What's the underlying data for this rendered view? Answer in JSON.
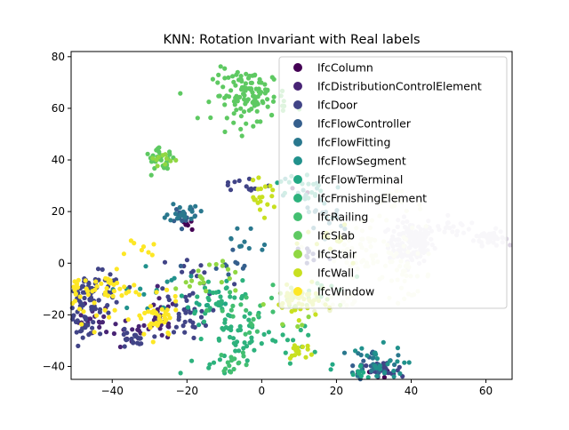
{
  "chart_data": {
    "type": "scatter",
    "title": "KNN: Rotation Invariant with Real labels",
    "xlabel": "",
    "ylabel": "",
    "xlim": [
      -51,
      67
    ],
    "ylim": [
      -45,
      82
    ],
    "xticks": [
      -40,
      -20,
      0,
      20,
      40,
      60
    ],
    "yticks": [
      -40,
      -20,
      0,
      20,
      40,
      60,
      80
    ],
    "xtick_labels": [
      "−40",
      "−20",
      "0",
      "20",
      "40",
      "60"
    ],
    "ytick_labels": [
      "−40",
      "−20",
      "0",
      "20",
      "40",
      "60",
      "80"
    ],
    "grid": false,
    "legend_position": "top-right",
    "series": [
      {
        "name": "IfcColumn",
        "color": "#440154",
        "clusters": [
          {
            "cx": -20,
            "cy": 15,
            "sx": 1.5,
            "sy": 3,
            "n": 6
          },
          {
            "cx": 33,
            "cy": -42,
            "sx": 2,
            "sy": 2,
            "n": 8
          },
          {
            "cx": 10,
            "cy": 27,
            "sx": 2,
            "sy": 2,
            "n": 3
          }
        ]
      },
      {
        "name": "IfcDistributionControlElement",
        "color": "#482475",
        "clusters": [
          {
            "cx": -27,
            "cy": -22,
            "sx": 2,
            "sy": 4,
            "n": 25
          },
          {
            "cx": -35,
            "cy": -28,
            "sx": 3,
            "sy": 3,
            "n": 15
          },
          {
            "cx": -46,
            "cy": -22,
            "sx": 3,
            "sy": 3,
            "n": 20
          }
        ]
      },
      {
        "name": "IfcDoor",
        "color": "#414487",
        "clusters": [
          {
            "cx": -45,
            "cy": -12,
            "sx": 4,
            "sy": 4,
            "n": 80
          },
          {
            "cx": -48,
            "cy": -24,
            "sx": 2,
            "sy": 2,
            "n": 25
          },
          {
            "cx": -35,
            "cy": -30,
            "sx": 2,
            "sy": 2,
            "n": 20
          },
          {
            "cx": -20,
            "cy": -20,
            "sx": 3,
            "sy": 4,
            "n": 30
          },
          {
            "cx": 32,
            "cy": -42,
            "sx": 3,
            "sy": 2,
            "n": 30
          },
          {
            "cx": 13,
            "cy": 3,
            "sx": 3,
            "sy": 3,
            "n": 10
          },
          {
            "cx": -5,
            "cy": 30,
            "sx": 4,
            "sy": 2,
            "n": 12
          },
          {
            "cx": -18,
            "cy": -5,
            "sx": 5,
            "sy": 5,
            "n": 15
          }
        ]
      },
      {
        "name": "IfcFlowController",
        "color": "#355f8d",
        "clusters": [
          {
            "cx": -21,
            "cy": 19,
            "sx": 2,
            "sy": 2,
            "n": 15
          },
          {
            "cx": 30,
            "cy": -40,
            "sx": 3,
            "sy": 3,
            "n": 15
          },
          {
            "cx": -10,
            "cy": -2,
            "sx": 4,
            "sy": 4,
            "n": 10
          }
        ]
      },
      {
        "name": "IfcFlowFitting",
        "color": "#2a788e",
        "clusters": [
          {
            "cx": -21,
            "cy": 20,
            "sx": 2,
            "sy": 2,
            "n": 20
          },
          {
            "cx": 30,
            "cy": -38,
            "sx": 3,
            "sy": 3,
            "n": 20
          },
          {
            "cx": 15,
            "cy": 15,
            "sx": 5,
            "sy": 5,
            "n": 15
          },
          {
            "cx": -5,
            "cy": 10,
            "sx": 5,
            "sy": 5,
            "n": 10
          }
        ]
      },
      {
        "name": "IfcFlowSegment",
        "color": "#21918c",
        "clusters": [
          {
            "cx": 30,
            "cy": -40,
            "sx": 4,
            "sy": 4,
            "n": 25
          },
          {
            "cx": 13,
            "cy": 25,
            "sx": 4,
            "sy": 4,
            "n": 15
          },
          {
            "cx": -30,
            "cy": -10,
            "sx": 5,
            "sy": 5,
            "n": 15
          }
        ]
      },
      {
        "name": "IfcFlowTerminal",
        "color": "#22a884",
        "clusters": [
          {
            "cx": 10,
            "cy": 30,
            "sx": 3,
            "sy": 3,
            "n": 15
          },
          {
            "cx": -15,
            "cy": -15,
            "sx": 4,
            "sy": 4,
            "n": 15
          },
          {
            "cx": 25,
            "cy": -42,
            "sx": 3,
            "sy": 2,
            "n": 10
          }
        ]
      },
      {
        "name": "IfcFrnishingElement",
        "color": "#2db27d",
        "clusters": [
          {
            "cx": -5,
            "cy": -30,
            "sx": 5,
            "sy": 5,
            "n": 40
          },
          {
            "cx": -10,
            "cy": -15,
            "sx": 5,
            "sy": 5,
            "n": 30
          },
          {
            "cx": -15,
            "cy": -40,
            "sx": 3,
            "sy": 2,
            "n": 10
          },
          {
            "cx": 10,
            "cy": -30,
            "sx": 4,
            "sy": 4,
            "n": 10
          }
        ]
      },
      {
        "name": "IfcRailing",
        "color": "#43bf71",
        "clusters": [
          {
            "cx": -7,
            "cy": -38,
            "sx": 2,
            "sy": 2,
            "n": 15
          },
          {
            "cx": -5,
            "cy": -20,
            "sx": 5,
            "sy": 4,
            "n": 20
          },
          {
            "cx": 15,
            "cy": -10,
            "sx": 4,
            "sy": 4,
            "n": 10
          }
        ]
      },
      {
        "name": "IfcSlab",
        "color": "#5ec962",
        "clusters": [
          {
            "cx": -3,
            "cy": 65,
            "sx": 5,
            "sy": 5,
            "n": 120
          },
          {
            "cx": -27,
            "cy": 40,
            "sx": 2,
            "sy": 2,
            "n": 30
          }
        ]
      },
      {
        "name": "IfcStair",
        "color": "#90d743",
        "clusters": [
          {
            "cx": -27,
            "cy": 40,
            "sx": 2,
            "sy": 2,
            "n": 10
          },
          {
            "cx": 10,
            "cy": -15,
            "sx": 4,
            "sy": 4,
            "n": 25
          },
          {
            "cx": -15,
            "cy": -5,
            "sx": 4,
            "sy": 4,
            "n": 20
          }
        ]
      },
      {
        "name": "IfcWall",
        "color": "#c8e020",
        "clusters": [
          {
            "cx": 10,
            "cy": -15,
            "sx": 3,
            "sy": 3,
            "n": 40
          },
          {
            "cx": 10,
            "cy": -34,
            "sx": 2,
            "sy": 2,
            "n": 15
          },
          {
            "cx": 0,
            "cy": 25,
            "sx": 2,
            "sy": 3,
            "n": 20
          },
          {
            "cx": 20,
            "cy": 10,
            "sx": 4,
            "sy": 4,
            "n": 15
          }
        ]
      },
      {
        "name": "IfcWindow",
        "color": "#fde725",
        "clusters": [
          {
            "cx": -28,
            "cy": -22,
            "sx": 3,
            "sy": 4,
            "n": 40
          },
          {
            "cx": -40,
            "cy": -10,
            "sx": 4,
            "sy": 3,
            "n": 30
          },
          {
            "cx": -50,
            "cy": -10,
            "sx": 1.5,
            "sy": 4,
            "n": 20
          },
          {
            "cx": -32,
            "cy": 5,
            "sx": 2,
            "sy": 1.5,
            "n": 8
          },
          {
            "cx": -45,
            "cy": -20,
            "sx": 3,
            "sy": 3,
            "n": 10
          }
        ]
      },
      {
        "name": "",
        "color": "#ddd4e4",
        "clusters": [
          {
            "cx": 40,
            "cy": 8,
            "sx": 3,
            "sy": 4,
            "n": 150
          },
          {
            "cx": 61,
            "cy": 10,
            "sx": 2,
            "sy": 1.5,
            "n": 50
          },
          {
            "cx": 50,
            "cy": 14,
            "sx": 3,
            "sy": 2,
            "n": 20
          }
        ]
      },
      {
        "name": "",
        "color": "#eef2cf",
        "clusters": [
          {
            "cx": 28,
            "cy": 5,
            "sx": 6,
            "sy": 5,
            "n": 60
          },
          {
            "cx": 38,
            "cy": -5,
            "sx": 4,
            "sy": 4,
            "n": 30
          },
          {
            "cx": 35,
            "cy": 22,
            "sx": 4,
            "sy": 3,
            "n": 20
          },
          {
            "cx": 20,
            "cy": -15,
            "sx": 4,
            "sy": 3,
            "n": 20
          }
        ]
      }
    ]
  }
}
